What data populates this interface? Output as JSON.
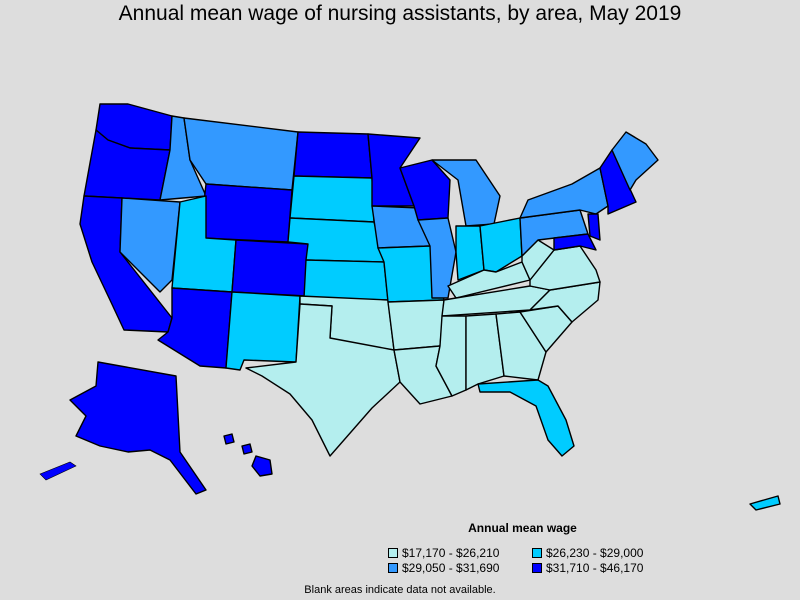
{
  "title": "Annual mean wage of nursing assistants, by area, May 2019",
  "legend": {
    "title": "Annual mean wage",
    "items": [
      {
        "label": "$17,170 - $26,210",
        "color": "#b4eeee"
      },
      {
        "label": "$26,230 - $29,000",
        "color": "#00ccff"
      },
      {
        "label": "$29,050 - $31,690",
        "color": "#3399ff"
      },
      {
        "label": "$31,710 - $46,170",
        "color": "#0000ff"
      }
    ]
  },
  "footnote": "Blank areas indicate data not available.",
  "colors": {
    "background": "#dddddd",
    "border": "#000000"
  }
}
